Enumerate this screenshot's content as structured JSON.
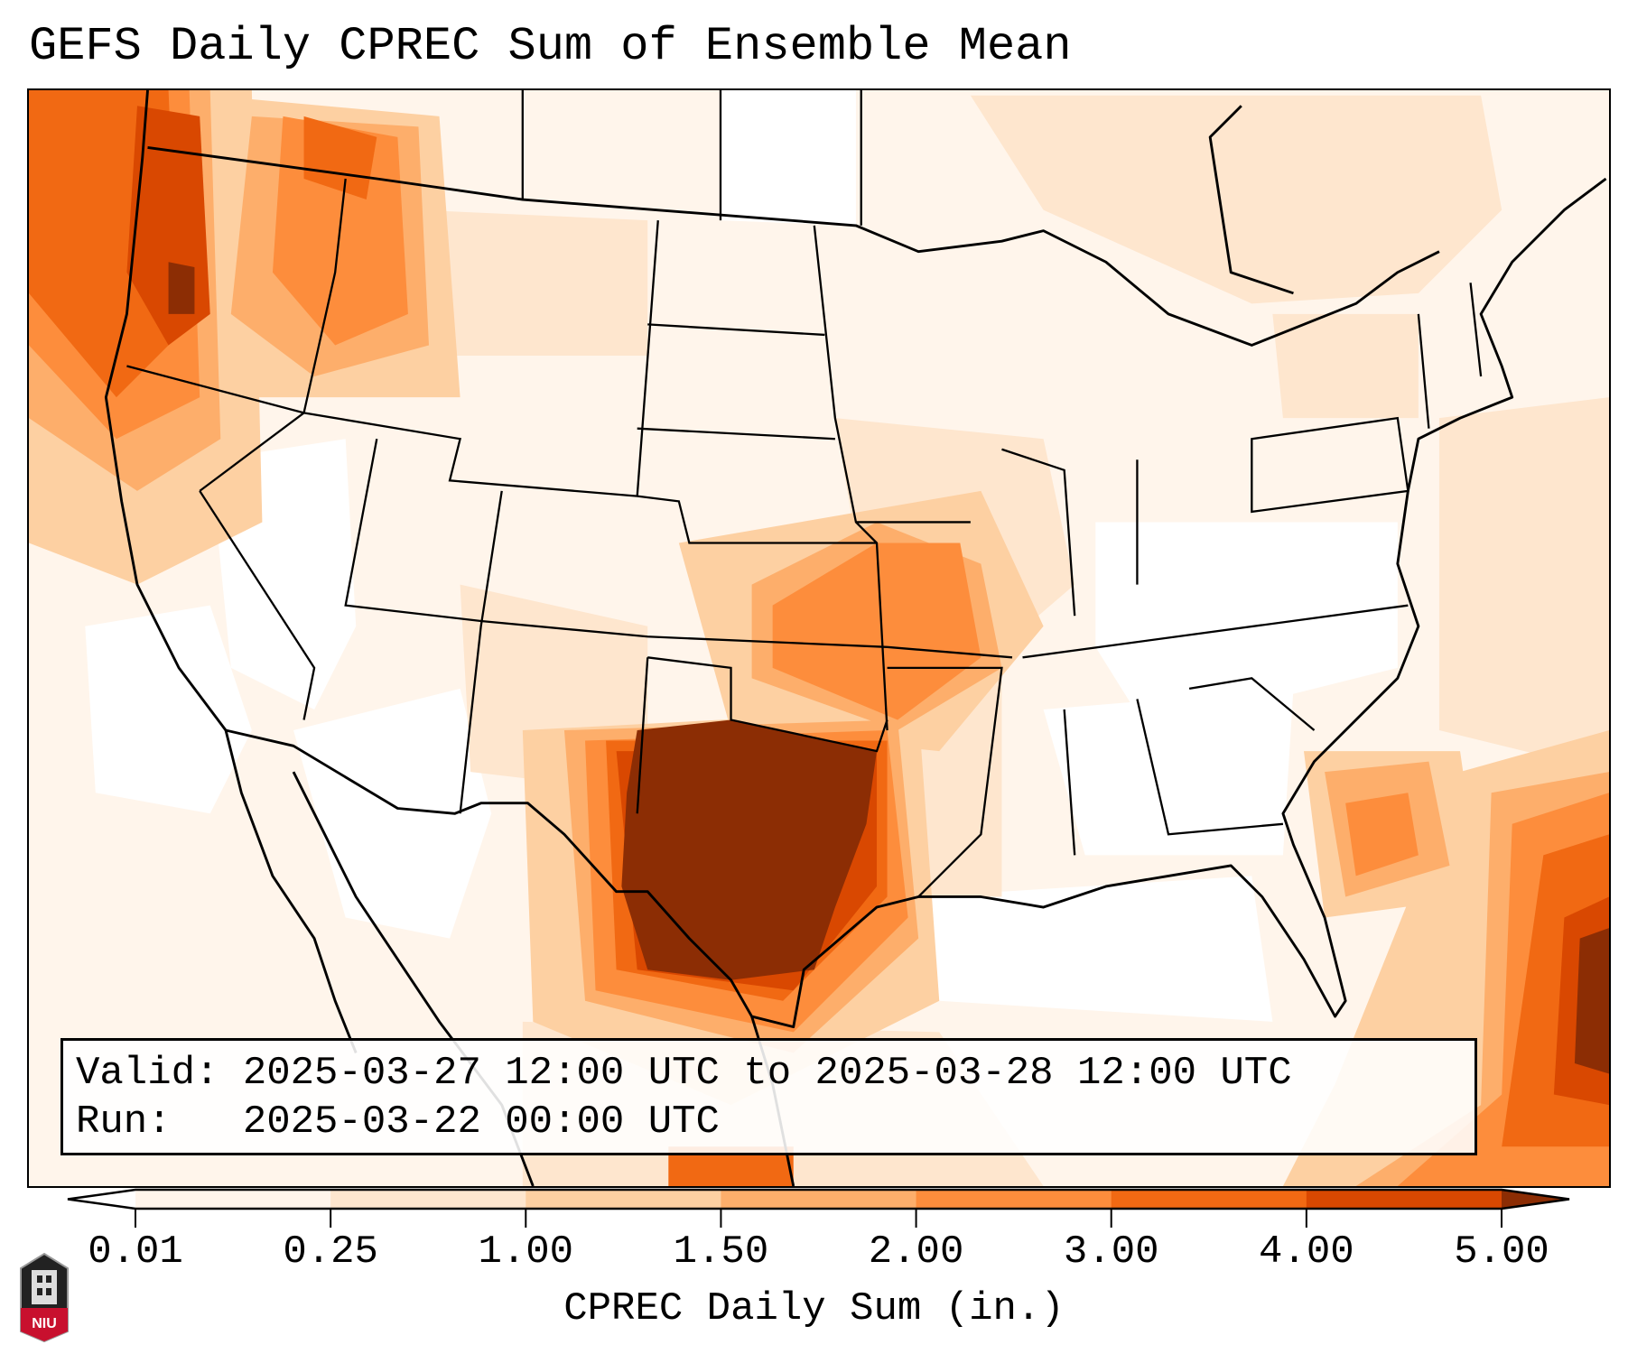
{
  "title": "GEFS Daily CPREC Sum of Ensemble Mean",
  "info": {
    "valid": "Valid: 2025-03-27 12:00 UTC to 2025-03-28 12:00 UTC",
    "run": "Run:   2025-03-22 00:00 UTC"
  },
  "colorbar": {
    "label": "CPREC Daily Sum (in.)",
    "ticks": [
      "0.01",
      "0.25",
      "1.00",
      "1.50",
      "2.00",
      "3.00",
      "4.00",
      "5.00"
    ],
    "under_color": "#ffffff",
    "colors": [
      "#fff5eb",
      "#fee6ce",
      "#fdd0a2",
      "#fdae6b",
      "#fd8d3c",
      "#f16913",
      "#d94801"
    ],
    "over_color": "#8c2d04"
  },
  "logo": {
    "text": "NIU"
  }
}
